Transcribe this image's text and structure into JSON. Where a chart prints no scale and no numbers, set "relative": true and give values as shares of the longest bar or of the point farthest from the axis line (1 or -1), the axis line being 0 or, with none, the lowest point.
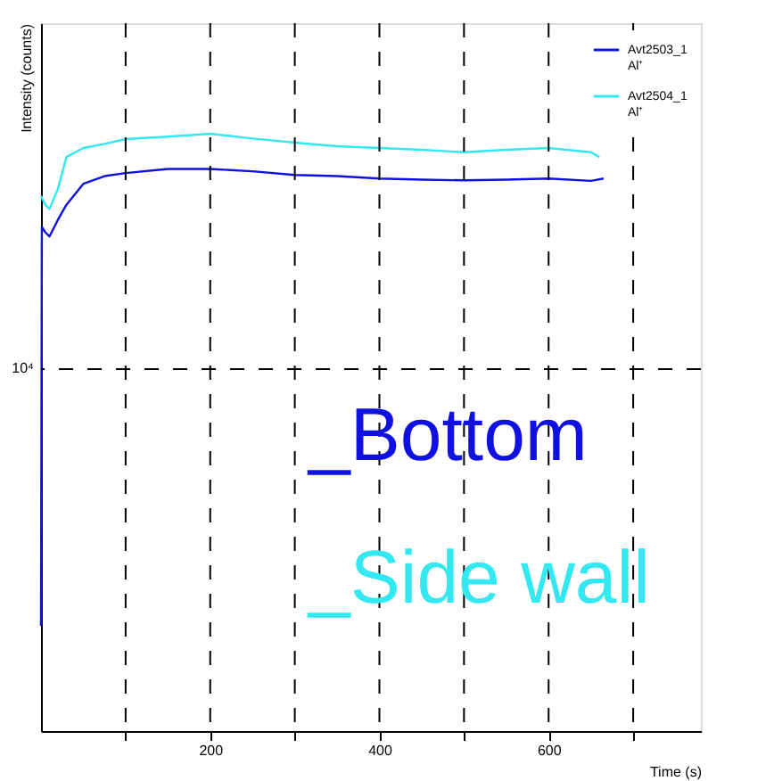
{
  "chart_data": {
    "type": "line",
    "xlabel": "Time (s)",
    "ylabel": "Intensity (counts)",
    "relative": true,
    "grid": "x",
    "legend": "top right",
    "line_style": "solid",
    "marker": "none",
    "xlim": [
      0,
      780
    ],
    "xticks": [
      {
        "value": 100,
        "label": null
      },
      200,
      {
        "value": 300,
        "label": null
      },
      400,
      {
        "value": 500,
        "label": null
      },
      600,
      {
        "value": 700,
        "label": null
      }
    ],
    "ref_lines": [
      {
        "axis": "y",
        "value": 0.606,
        "line_style": "dashed",
        "color": "#000000"
      }
    ],
    "series": [
      {
        "name": "Avt2503_1 Al⁺",
        "color": "#1010e0",
        "x": [
          0,
          1,
          5,
          10,
          20,
          30,
          50,
          75,
          100,
          150,
          200,
          250,
          300,
          350,
          400,
          450,
          500,
          550,
          600,
          650,
          665
        ],
        "values": [
          0.176,
          0.844,
          0.835,
          0.828,
          0.856,
          0.881,
          0.916,
          0.929,
          0.934,
          0.941,
          0.941,
          0.937,
          0.931,
          0.929,
          0.925,
          0.923,
          0.922,
          0.923,
          0.925,
          0.921,
          0.925
        ]
      },
      {
        "name": "Avt2504_1 Al⁺",
        "color": "#33e8f0",
        "x": [
          0,
          5,
          10,
          20,
          30,
          50,
          75,
          100,
          150,
          200,
          250,
          300,
          350,
          400,
          450,
          500,
          550,
          600,
          650,
          660
        ],
        "values": [
          0.896,
          0.881,
          0.874,
          0.908,
          0.961,
          0.976,
          0.983,
          0.991,
          0.995,
          1,
          0.992,
          0.985,
          0.979,
          0.976,
          0.973,
          0.969,
          0.973,
          0.976,
          0.969,
          0.961
        ]
      }
    ],
    "annotations": [
      "10⁴",
      "_Bottom",
      "_Side wall"
    ]
  }
}
